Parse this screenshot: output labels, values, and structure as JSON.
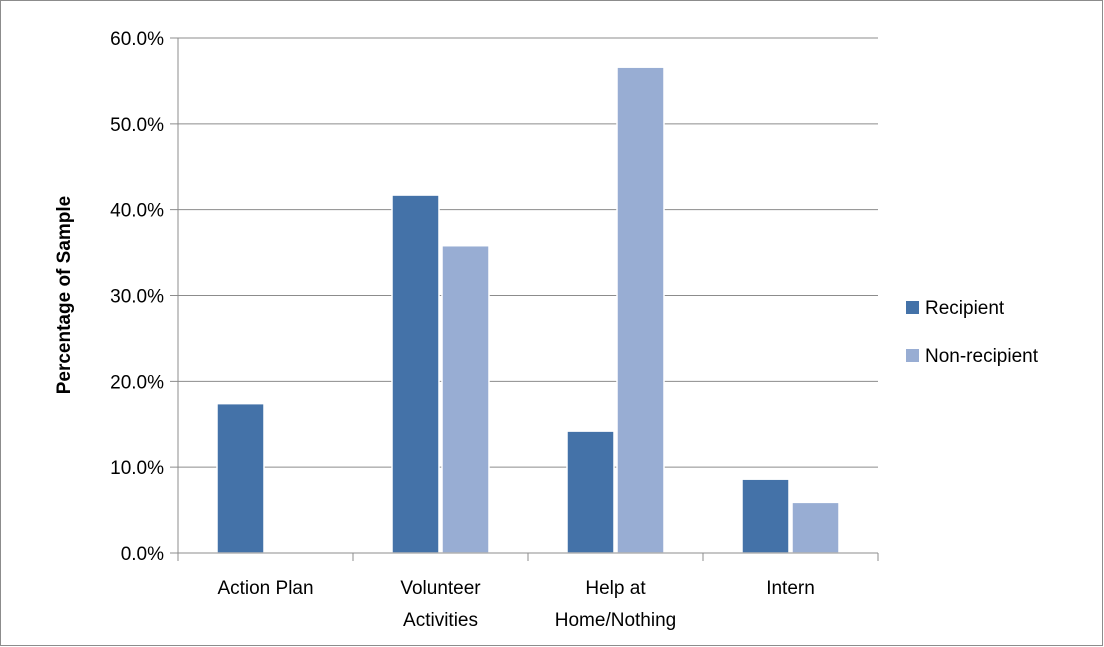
{
  "chart_data": {
    "type": "bar",
    "title": "",
    "xlabel": "",
    "ylabel": "Percentage of Sample",
    "ylim": [
      0,
      60
    ],
    "y_ticks": [
      "0.0%",
      "10.0%",
      "20.0%",
      "30.0%",
      "40.0%",
      "50.0%",
      "60.0%"
    ],
    "categories": [
      [
        "Action Plan"
      ],
      [
        "Volunteer",
        "Activities"
      ],
      [
        "Help at",
        "Home/Nothing"
      ],
      [
        "Intern"
      ]
    ],
    "series": [
      {
        "name": "Recipient",
        "color": "#4472a8",
        "values": [
          17.4,
          41.7,
          14.2,
          8.6
        ]
      },
      {
        "name": "Non-recipient",
        "color": "#98add3",
        "values": [
          0,
          35.8,
          56.6,
          5.9
        ]
      }
    ],
    "grid": true,
    "legend_position": "right"
  }
}
